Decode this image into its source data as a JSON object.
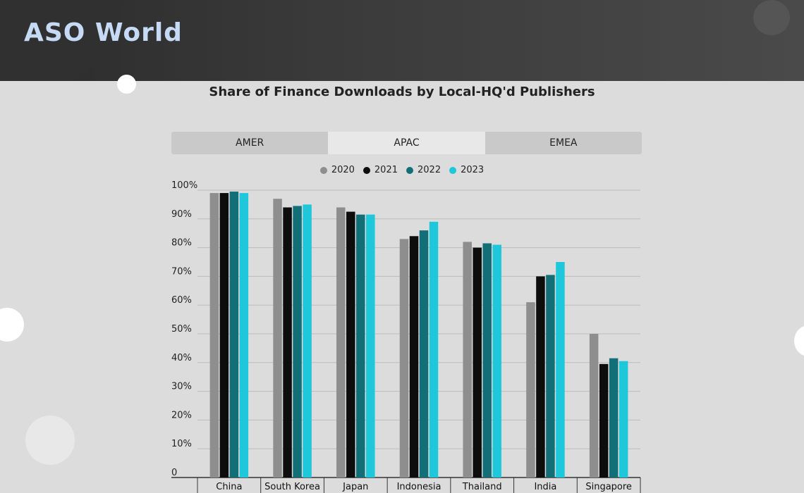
{
  "brand": {
    "logo_text": "ASO World"
  },
  "tabs": [
    {
      "label": "AMER",
      "active": false
    },
    {
      "label": "APAC",
      "active": true
    },
    {
      "label": "EMEA",
      "active": false
    }
  ],
  "colors": {
    "s2020": "#8e8e8e",
    "s2021": "#0d0d0d",
    "s2022": "#136f77",
    "s2023": "#1fc7db"
  },
  "chart_data": {
    "type": "bar",
    "title": "Share of Finance Downloads by Local-HQ'd Publishers",
    "categories": [
      "China",
      "South Korea",
      "Japan",
      "Indonesia",
      "Thailand",
      "India",
      "Singapore"
    ],
    "series": [
      {
        "name": "2020",
        "color": "#8e8e8e",
        "values": [
          99,
          97,
          94,
          83,
          82,
          61,
          50
        ]
      },
      {
        "name": "2021",
        "color": "#0d0d0d",
        "values": [
          99,
          94,
          92.5,
          84,
          80,
          70,
          39.5
        ]
      },
      {
        "name": "2022",
        "color": "#136f77",
        "values": [
          99.5,
          94.5,
          91.5,
          86,
          81.5,
          70.5,
          41.5
        ]
      },
      {
        "name": "2023",
        "color": "#1fc7db",
        "values": [
          99,
          95,
          91.5,
          89,
          81,
          75,
          40.5
        ]
      }
    ],
    "ylim": [
      0,
      100
    ],
    "yticks": [
      "0",
      "10%",
      "20%",
      "30%",
      "40%",
      "50%",
      "60%",
      "70%",
      "80%",
      "90%",
      "100%"
    ],
    "grid": true,
    "legend_position": "top-center"
  }
}
